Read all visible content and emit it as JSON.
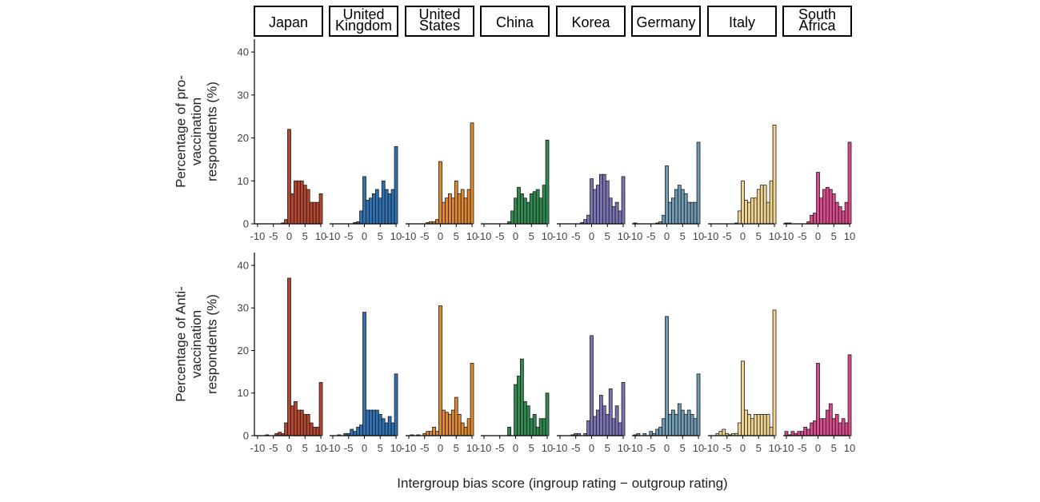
{
  "chart_data": {
    "type": "bar",
    "title": "",
    "xlabel": "Intergroup bias score (ingroup rating − outgroup rating)",
    "xlim": [
      -11,
      11
    ],
    "ylim": [
      0,
      43
    ],
    "x_ticks": [
      -10,
      -5,
      0,
      5,
      10
    ],
    "x_tick_labels": [
      "-10",
      "-5",
      "0",
      "5",
      "10"
    ],
    "y_ticks": [
      0,
      10,
      20,
      30,
      40
    ],
    "bins": [
      -10,
      -9,
      -8,
      -7,
      -6,
      -5,
      -4,
      -3,
      -2,
      -1,
      0,
      1,
      2,
      3,
      4,
      5,
      6,
      7,
      8,
      9,
      10
    ],
    "facets": [
      {
        "name": "Japan",
        "label_lines": [
          "Japan"
        ],
        "color": "#b5452c"
      },
      {
        "name": "United Kingdom",
        "label_lines": [
          "United",
          "Kingdom"
        ],
        "color": "#2e72b5"
      },
      {
        "name": "United States",
        "label_lines": [
          "United",
          "States"
        ],
        "color": "#e0892e"
      },
      {
        "name": "China",
        "label_lines": [
          "China"
        ],
        "color": "#2f8a4f"
      },
      {
        "name": "Korea",
        "label_lines": [
          "Korea"
        ],
        "color": "#7a74b5"
      },
      {
        "name": "Germany",
        "label_lines": [
          "Germany"
        ],
        "color": "#6f9bb4"
      },
      {
        "name": "Italy",
        "label_lines": [
          "Italy"
        ],
        "color": "#f0d38f"
      },
      {
        "name": "South Africa",
        "label_lines": [
          "South",
          "Africa"
        ],
        "color": "#d94a8c"
      }
    ],
    "rows": [
      {
        "ylabel": "Percentage of pro-vaccination respondents (%)",
        "ylabel_lines": [
          "Percentage of pro-",
          "vaccination",
          "respondents (%)"
        ],
        "series": [
          {
            "name": "Japan",
            "values": [
              0,
              0,
              0,
              0,
              0,
              0,
              0,
              0,
              0.2,
              1,
              22,
              7,
              10,
              10,
              10,
              9,
              8,
              5,
              5,
              5,
              7
            ]
          },
          {
            "name": "United Kingdom",
            "values": [
              0,
              0,
              0,
              0,
              0,
              0,
              0,
              0.3,
              0.5,
              3,
              11,
              5.5,
              6,
              7,
              8,
              6,
              10,
              8,
              7,
              8,
              18
            ]
          },
          {
            "name": "United States",
            "values": [
              0,
              0,
              0,
              0,
              0,
              0,
              0.3,
              0.5,
              0.5,
              1,
              14.5,
              5,
              6,
              7,
              6,
              10,
              7,
              8,
              6,
              8,
              23.5
            ]
          },
          {
            "name": "China",
            "values": [
              0,
              0,
              0,
              0,
              0,
              0,
              0,
              0,
              0.5,
              3,
              6,
              8.5,
              7,
              6,
              5,
              7,
              7.5,
              8,
              6,
              9,
              19.5
            ]
          },
          {
            "name": "Korea",
            "values": [
              0,
              0,
              0,
              0,
              0,
              0,
              0,
              0.3,
              1,
              2,
              10.5,
              8,
              9,
              11.5,
              11.5,
              10,
              6,
              4,
              5,
              3,
              11
            ]
          },
          {
            "name": "Germany",
            "values": [
              0.2,
              0,
              0,
              0,
              0,
              0,
              0,
              0.2,
              0.5,
              2,
              13.5,
              5,
              6,
              8,
              9,
              8,
              7,
              5,
              5,
              5,
              19
            ]
          },
          {
            "name": "Italy",
            "values": [
              0,
              0,
              0,
              0,
              0,
              0,
              0,
              0,
              0.2,
              3,
              10,
              5.5,
              5,
              6,
              6,
              8,
              9,
              9,
              5,
              10,
              23
            ]
          },
          {
            "name": "South Africa",
            "values": [
              0.2,
              0.2,
              0,
              0,
              0,
              0,
              0,
              0.5,
              2,
              2.5,
              12,
              6,
              8,
              8.5,
              8,
              7,
              5,
              4,
              3,
              5,
              19
            ]
          }
        ]
      },
      {
        "ylabel": "Percentage of Anti-vaccination respondents (%)",
        "ylabel_lines": [
          "Percentage of Anti-",
          "vaccination",
          "respondents (%)"
        ],
        "series": [
          {
            "name": "Japan",
            "values": [
              0,
              0,
              0,
              0.2,
              0,
              0,
              0.5,
              0.8,
              0.5,
              3,
              37,
              7,
              8,
              6,
              6,
              5,
              5,
              3,
              2,
              2,
              12.5
            ]
          },
          {
            "name": "United Kingdom",
            "values": [
              0,
              0,
              0.2,
              0,
              0.5,
              0.5,
              1.5,
              1,
              2,
              2.5,
              29,
              6,
              6,
              6,
              6,
              5,
              4,
              3,
              4.5,
              3,
              14.5
            ]
          },
          {
            "name": "United States",
            "values": [
              0,
              0.2,
              0,
              0.2,
              0,
              0.5,
              1,
              1,
              2,
              1,
              30.5,
              6,
              5.5,
              5,
              6,
              9,
              5,
              3,
              2,
              4,
              17
            ]
          },
          {
            "name": "China",
            "values": [
              0,
              0,
              0,
              0,
              0,
              0,
              0,
              0,
              2,
              0,
              12,
              14,
              18,
              8,
              7,
              4,
              5,
              2,
              4,
              4,
              10
            ]
          },
          {
            "name": "Korea",
            "values": [
              0,
              0,
              0,
              0,
              0.2,
              0.5,
              0.5,
              0,
              0.5,
              3.5,
              23.5,
              4.5,
              6,
              9.5,
              7,
              5,
              11,
              4,
              7,
              3,
              12.5
            ]
          },
          {
            "name": "Germany",
            "values": [
              0.2,
              0.5,
              0,
              0.5,
              0,
              1,
              0.5,
              1.5,
              2,
              4,
              28,
              5,
              6,
              5,
              7.5,
              6,
              5,
              6,
              5,
              4,
              14.5
            ]
          },
          {
            "name": "Italy",
            "values": [
              0,
              0,
              0.5,
              1,
              1.5,
              0.5,
              0.2,
              0.5,
              0.5,
              3,
              17.5,
              6,
              5,
              4,
              5,
              5,
              5,
              5,
              5,
              2,
              29.5
            ]
          },
          {
            "name": "South Africa",
            "values": [
              1,
              0.2,
              1,
              0.5,
              1,
              1,
              2,
              1.5,
              3,
              3.5,
              17,
              4,
              4,
              6,
              7.5,
              4,
              5,
              3,
              4,
              3,
              19
            ]
          }
        ]
      }
    ]
  }
}
